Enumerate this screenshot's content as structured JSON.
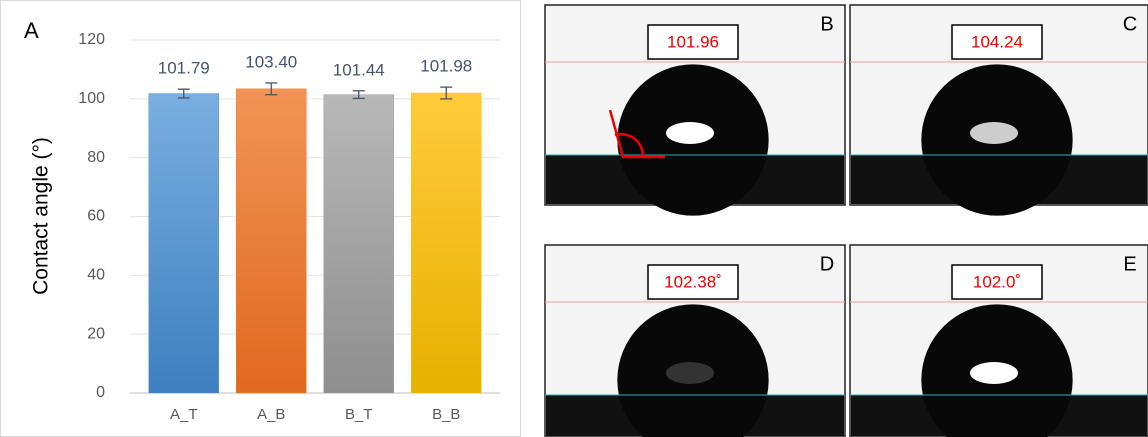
{
  "chart_data": {
    "type": "bar",
    "panel_label": "A",
    "y_label": "Contact angle (°)",
    "categories": [
      "A_T",
      "A_B",
      "B_T",
      "B_B"
    ],
    "values": [
      101.79,
      103.4,
      101.44,
      101.98
    ],
    "value_labels": [
      "101.79",
      "103.40",
      "101.44",
      "101.98"
    ],
    "errors": [
      1.5,
      2,
      1.3,
      2
    ],
    "colors": [
      "#5b9bd5",
      "#ed7d31",
      "#a5a5a5",
      "#ffc000"
    ],
    "ylim": [
      0,
      120
    ],
    "yticks": [
      0,
      20,
      40,
      60,
      80,
      100,
      120
    ],
    "grid": true
  },
  "panels": [
    {
      "label": "B",
      "angle": "101.96"
    },
    {
      "label": "C",
      "angle": "104.24"
    },
    {
      "label": "D",
      "angle": "102.38˚"
    },
    {
      "label": "E",
      "angle": "102.0˚"
    }
  ]
}
